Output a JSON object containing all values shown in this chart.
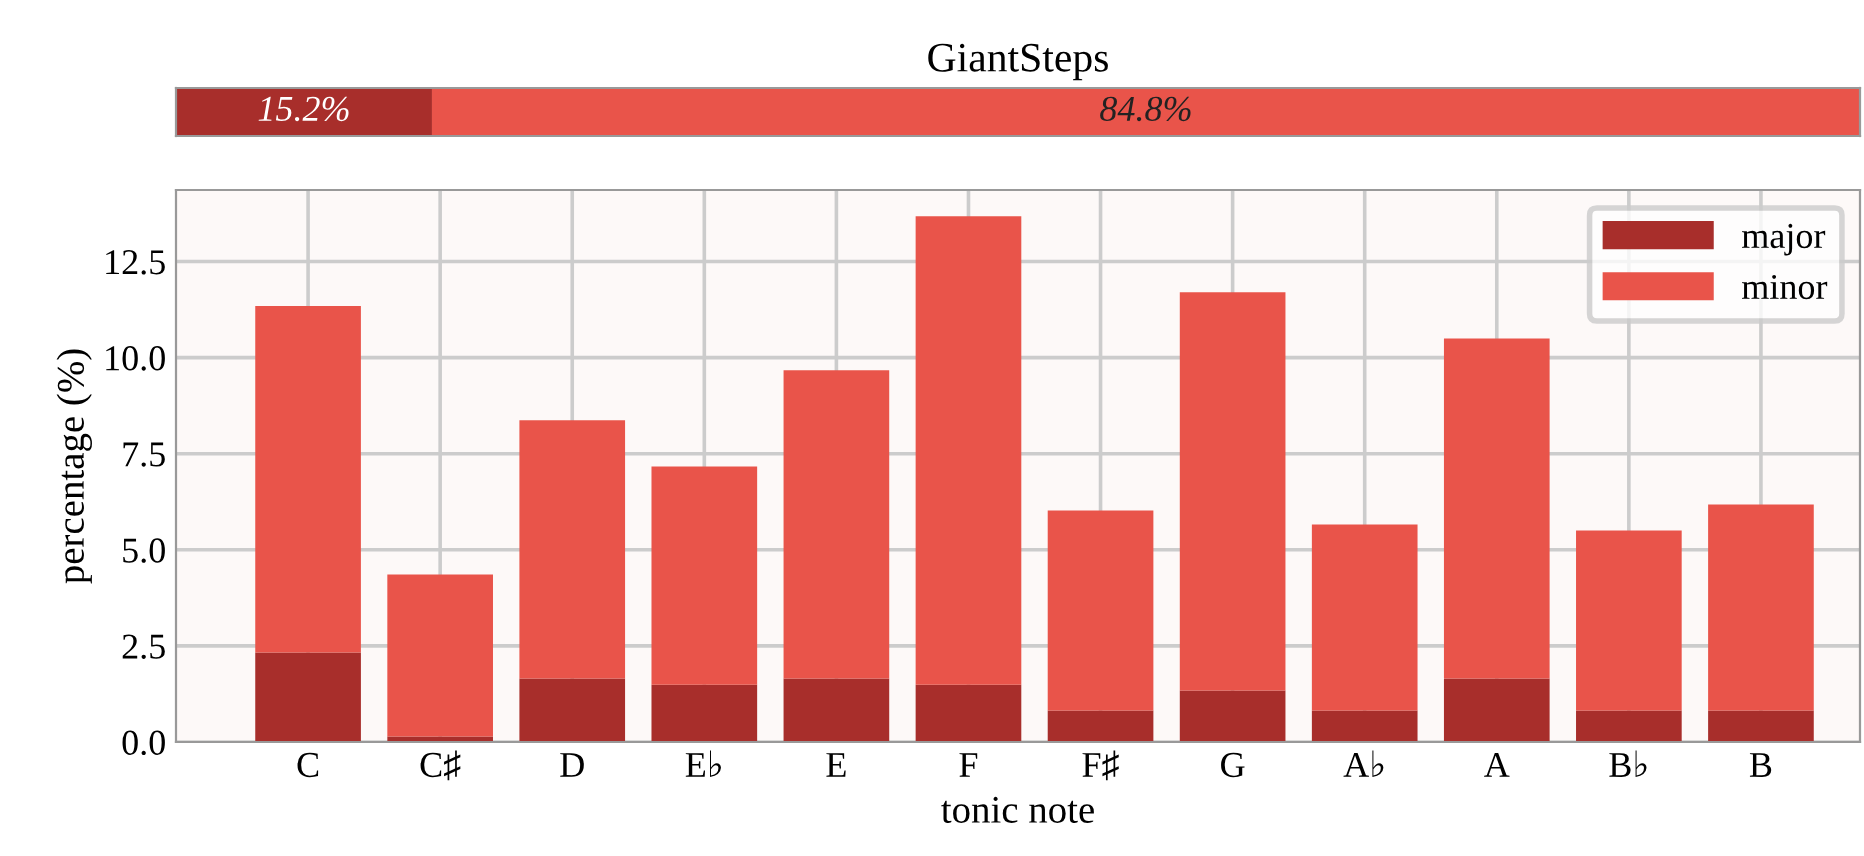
{
  "chart_data": [
    {
      "type": "bar",
      "title": "GiantSteps",
      "orientation": "horizontal",
      "stacked": true,
      "categories": [
        null
      ],
      "xlim": [
        0,
        100
      ],
      "tick_labels": false,
      "grid": false,
      "legend": false,
      "series": [
        {
          "color": "#a82e2b",
          "values": [
            15.2
          ],
          "value_labels": [
            "15.2%"
          ]
        },
        {
          "color": "#e9544a",
          "values": [
            84.8
          ],
          "value_labels": [
            "84.8%"
          ]
        }
      ]
    },
    {
      "type": "bar",
      "stacked": true,
      "xlabel": "tonic note",
      "ylabel": "percentage (%)",
      "categories": [
        "C",
        "C♯",
        "D",
        "E♭",
        "E",
        "F",
        "F♯",
        "G",
        "A♭",
        "A",
        "B♭",
        "B"
      ],
      "ylim": [
        0,
        14.36
      ],
      "yticks": [
        {
          "value": 0,
          "label": "0.0"
        },
        2.5,
        {
          "value": 5,
          "label": "5.0"
        },
        7.5,
        {
          "value": 10,
          "label": "10.0"
        },
        12.5
      ],
      "grid": true,
      "legend": "top right",
      "series": [
        {
          "name": "major",
          "color": "#a82e2b",
          "values": [
            2.33,
            0.14,
            1.65,
            1.49,
            1.65,
            1.49,
            0.82,
            1.34,
            0.82,
            1.65,
            0.82,
            0.82
          ]
        },
        {
          "name": "minor",
          "color": "#e9544a",
          "values": [
            9.01,
            4.22,
            6.72,
            5.68,
            8.02,
            12.19,
            5.2,
            10.36,
            4.84,
            8.85,
            4.68,
            5.36
          ]
        }
      ]
    }
  ]
}
